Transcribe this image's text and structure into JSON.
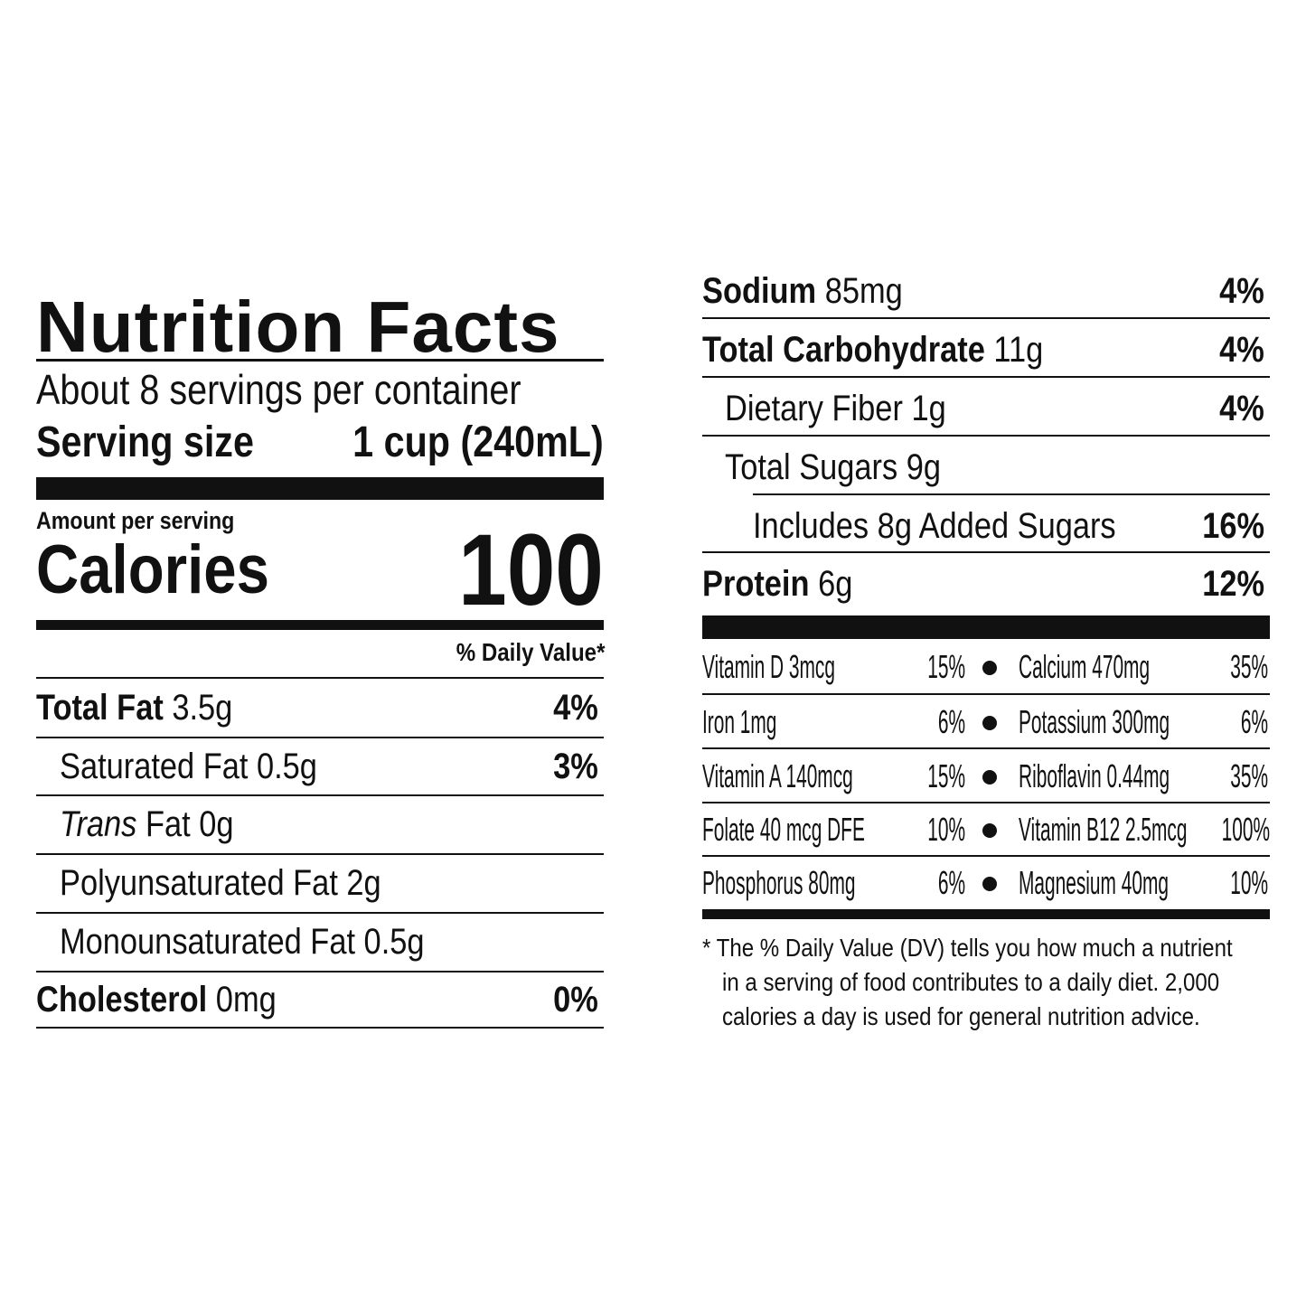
{
  "left": {
    "title": "Nutrition Facts",
    "servings": "About 8 servings per container",
    "serving_size_label": "Serving size",
    "serving_size_value": "1 cup (240mL)",
    "amount_per_serving": "Amount per serving",
    "calories_label": "Calories",
    "calories_value": "100",
    "dv_header": "% Daily Value*",
    "rows": [
      {
        "label": "Total Fat",
        "amount": "3.5g",
        "dv": "4%"
      },
      {
        "label": "Saturated Fat 0.5g",
        "dv": "3%"
      },
      {
        "label_italic": "Trans",
        "label": "Fat 0g",
        "dv": ""
      },
      {
        "label": "Polyunsaturated Fat 2g",
        "dv": ""
      },
      {
        "label": "Monounsaturated Fat 0.5g",
        "dv": ""
      },
      {
        "label": "Cholesterol",
        "amount": "0mg",
        "dv": "0%"
      }
    ]
  },
  "right": {
    "rows": [
      {
        "label": "Sodium",
        "amount": "85mg",
        "dv": "4%"
      },
      {
        "label": "Total Carbohydrate",
        "amount": "11g",
        "dv": "4%"
      },
      {
        "label": "Dietary Fiber 1g",
        "dv": "4%"
      },
      {
        "label": "Total Sugars 9g",
        "dv": ""
      },
      {
        "label": "Includes 8g Added Sugars",
        "dv": "16%"
      },
      {
        "label": "Protein",
        "amount": "6g",
        "dv": "12%"
      }
    ],
    "vitamins": [
      {
        "left_name": "Vitamin D 3mcg",
        "left_dv": "15%",
        "right_name": "Calcium 470mg",
        "right_dv": "35%"
      },
      {
        "left_name": "Iron 1mg",
        "left_dv": "6%",
        "right_name": "Potassium 300mg",
        "right_dv": "6%"
      },
      {
        "left_name": "Vitamin A 140mcg",
        "left_dv": "15%",
        "right_name": "Riboflavin 0.44mg",
        "right_dv": "35%"
      },
      {
        "left_name": "Folate 40 mcg DFE",
        "left_dv": "10%",
        "right_name": "Vitamin B12 2.5mcg",
        "right_dv": "100%"
      },
      {
        "left_name": "Phosphorus 80mg",
        "left_dv": "6%",
        "right_name": "Magnesium 40mg",
        "right_dv": "10%"
      }
    ],
    "footnote_lines": [
      "* The % Daily Value (DV) tells you how much a nutrient",
      "in a serving of food contributes to a daily diet. 2,000",
      "calories a day is used for general nutrition advice."
    ]
  }
}
